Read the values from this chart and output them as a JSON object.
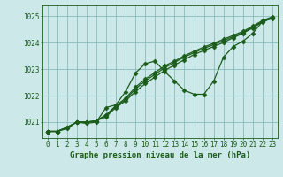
{
  "xlabel": "Graphe pression niveau de la mer (hPa)",
  "ylim": [
    1020.4,
    1025.4
  ],
  "xlim": [
    -0.5,
    23.5
  ],
  "yticks": [
    1021,
    1022,
    1023,
    1024,
    1025
  ],
  "xticks": [
    0,
    1,
    2,
    3,
    4,
    5,
    6,
    7,
    8,
    9,
    10,
    11,
    12,
    13,
    14,
    15,
    16,
    17,
    18,
    19,
    20,
    21,
    22,
    23
  ],
  "bg_color": "#cce8e8",
  "grid_color": "#8ababa",
  "line_color": "#1a5c1a",
  "line1_x": [
    0,
    1,
    2,
    3,
    4,
    5,
    6,
    7,
    8,
    9,
    10,
    11,
    12,
    13,
    14,
    15,
    16,
    17,
    18,
    19,
    20,
    21,
    22,
    23
  ],
  "line1_y": [
    1020.65,
    1020.65,
    1020.75,
    1021.0,
    1020.95,
    1021.0,
    1021.55,
    1021.65,
    1022.15,
    1022.85,
    1023.2,
    1023.3,
    1022.9,
    1022.55,
    1022.2,
    1022.05,
    1022.05,
    1022.55,
    1023.45,
    1023.85,
    1024.05,
    1024.35,
    1024.8,
    1024.9
  ],
  "line2_x": [
    0,
    1,
    2,
    3,
    4,
    5,
    6,
    7,
    8,
    9,
    10,
    11,
    12,
    13,
    14,
    15,
    16,
    17,
    18,
    19,
    20,
    21,
    22,
    23
  ],
  "line2_y": [
    1020.65,
    1020.65,
    1020.8,
    1021.0,
    1021.0,
    1021.05,
    1021.2,
    1021.55,
    1021.8,
    1022.15,
    1022.45,
    1022.7,
    1022.95,
    1023.15,
    1023.35,
    1023.55,
    1023.7,
    1023.85,
    1024.0,
    1024.18,
    1024.35,
    1024.55,
    1024.78,
    1024.92
  ],
  "line3_x": [
    0,
    1,
    2,
    3,
    4,
    5,
    6,
    7,
    8,
    9,
    10,
    11,
    12,
    13,
    14,
    15,
    16,
    17,
    18,
    19,
    20,
    21,
    22,
    23
  ],
  "line3_y": [
    1020.65,
    1020.65,
    1020.8,
    1021.0,
    1021.0,
    1021.05,
    1021.25,
    1021.6,
    1021.85,
    1022.25,
    1022.55,
    1022.8,
    1023.05,
    1023.25,
    1023.45,
    1023.62,
    1023.78,
    1023.92,
    1024.07,
    1024.22,
    1024.38,
    1024.58,
    1024.8,
    1024.94
  ],
  "line4_x": [
    0,
    1,
    2,
    3,
    4,
    5,
    6,
    7,
    8,
    9,
    10,
    11,
    12,
    13,
    14,
    15,
    16,
    17,
    18,
    19,
    20,
    21,
    22,
    23
  ],
  "line4_y": [
    1020.65,
    1020.65,
    1020.8,
    1021.0,
    1021.0,
    1021.05,
    1021.28,
    1021.62,
    1021.9,
    1022.32,
    1022.62,
    1022.87,
    1023.12,
    1023.3,
    1023.5,
    1023.67,
    1023.83,
    1023.97,
    1024.12,
    1024.27,
    1024.42,
    1024.62,
    1024.83,
    1024.97
  ],
  "marker": "D",
  "markersize": 2.5,
  "linewidth": 0.9,
  "tick_fontsize": 5.5,
  "label_fontsize": 6.5
}
